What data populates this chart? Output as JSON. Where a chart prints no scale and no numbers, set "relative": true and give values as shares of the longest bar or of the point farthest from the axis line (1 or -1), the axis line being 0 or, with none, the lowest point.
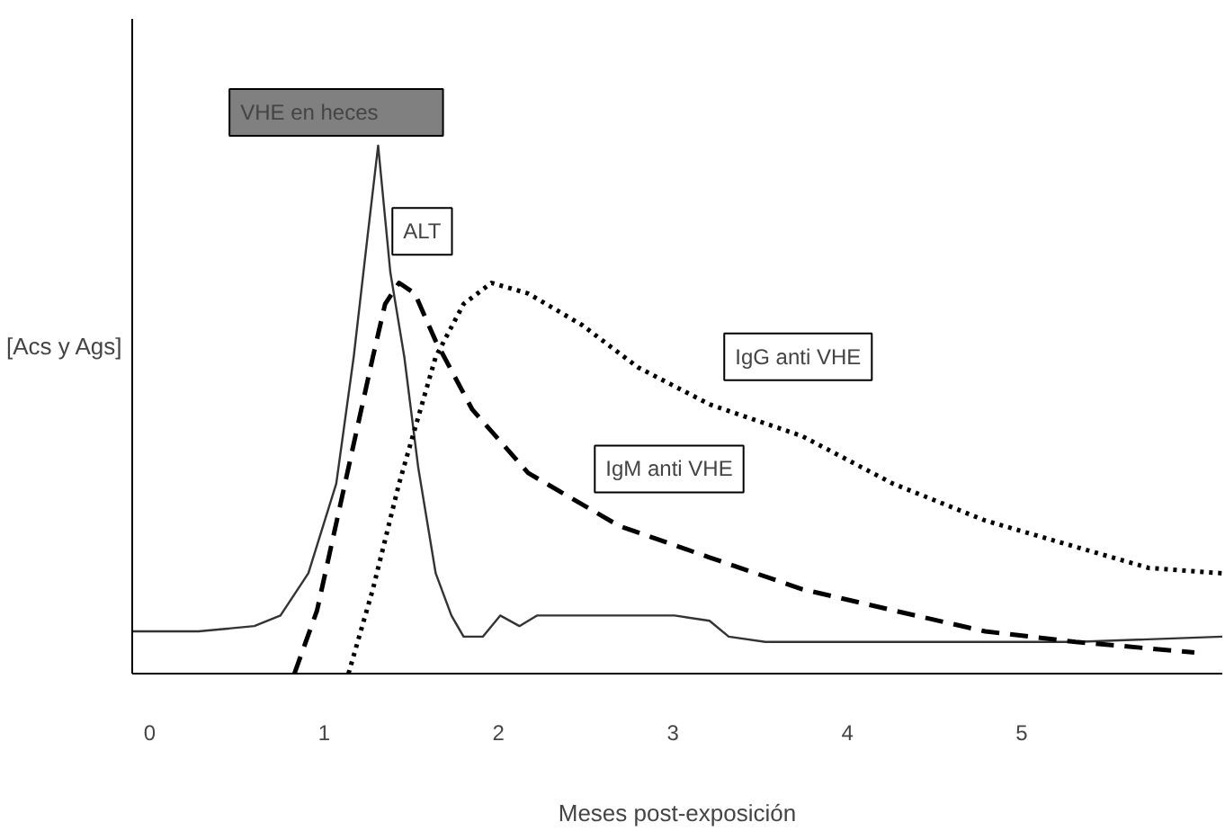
{
  "chart_data": {
    "type": "line",
    "relative": true,
    "xlabel": "Meses post-exposición",
    "ylabel": "[Acs y Ags]",
    "xlim": [
      -0.1,
      6.15
    ],
    "xticks": [
      0,
      1,
      2,
      3,
      4,
      5
    ],
    "grid": false,
    "marker": "none",
    "series": [
      {
        "color": "#333333",
        "line_style": "solid",
        "x": [
          -0.1,
          0.28,
          0.6,
          0.75,
          0.91,
          1.07,
          1.17,
          1.25,
          1.31,
          1.38,
          1.46,
          1.54,
          1.64,
          1.73,
          1.8,
          1.91,
          2.01,
          2.12,
          2.22,
          2.38,
          2.59,
          2.8,
          3.01,
          3.21,
          3.32,
          3.53,
          4.26,
          5.31,
          6.15
        ],
        "values": [
          0.08,
          0.08,
          0.09,
          0.11,
          0.19,
          0.36,
          0.6,
          0.83,
          1,
          0.76,
          0.6,
          0.39,
          0.19,
          0.11,
          0.07,
          0.07,
          0.11,
          0.09,
          0.11,
          0.11,
          0.11,
          0.11,
          0.11,
          0.1,
          0.07,
          0.06,
          0.06,
          0.06,
          0.07
        ]
      },
      {
        "color": "#000000",
        "line_style": "dashed",
        "x": [
          0.83,
          0.96,
          1.12,
          1.28,
          1.35,
          1.43,
          1.52,
          1.64,
          1.85,
          2.17,
          2.69,
          3.21,
          3.74,
          4.26,
          4.79,
          5.31,
          5.99
        ],
        "values": [
          0,
          0.12,
          0.36,
          0.6,
          0.7,
          0.74,
          0.72,
          0.63,
          0.5,
          0.38,
          0.28,
          0.22,
          0.16,
          0.12,
          0.08,
          0.06,
          0.04
        ]
      },
      {
        "color": "#000000",
        "line_style": "dotted",
        "x": [
          1.14,
          1.28,
          1.43,
          1.64,
          1.8,
          1.96,
          2.17,
          2.48,
          2.8,
          3.21,
          3.74,
          4.26,
          4.79,
          5.31,
          5.73,
          6.15
        ],
        "values": [
          0,
          0.16,
          0.36,
          0.6,
          0.7,
          0.74,
          0.72,
          0.66,
          0.58,
          0.51,
          0.45,
          0.36,
          0.29,
          0.24,
          0.2,
          0.19
        ]
      }
    ],
    "annotations": [
      "VHE          en heces",
      "ALT",
      "IgG anti VHE",
      "IgM anti VHE"
    ]
  }
}
